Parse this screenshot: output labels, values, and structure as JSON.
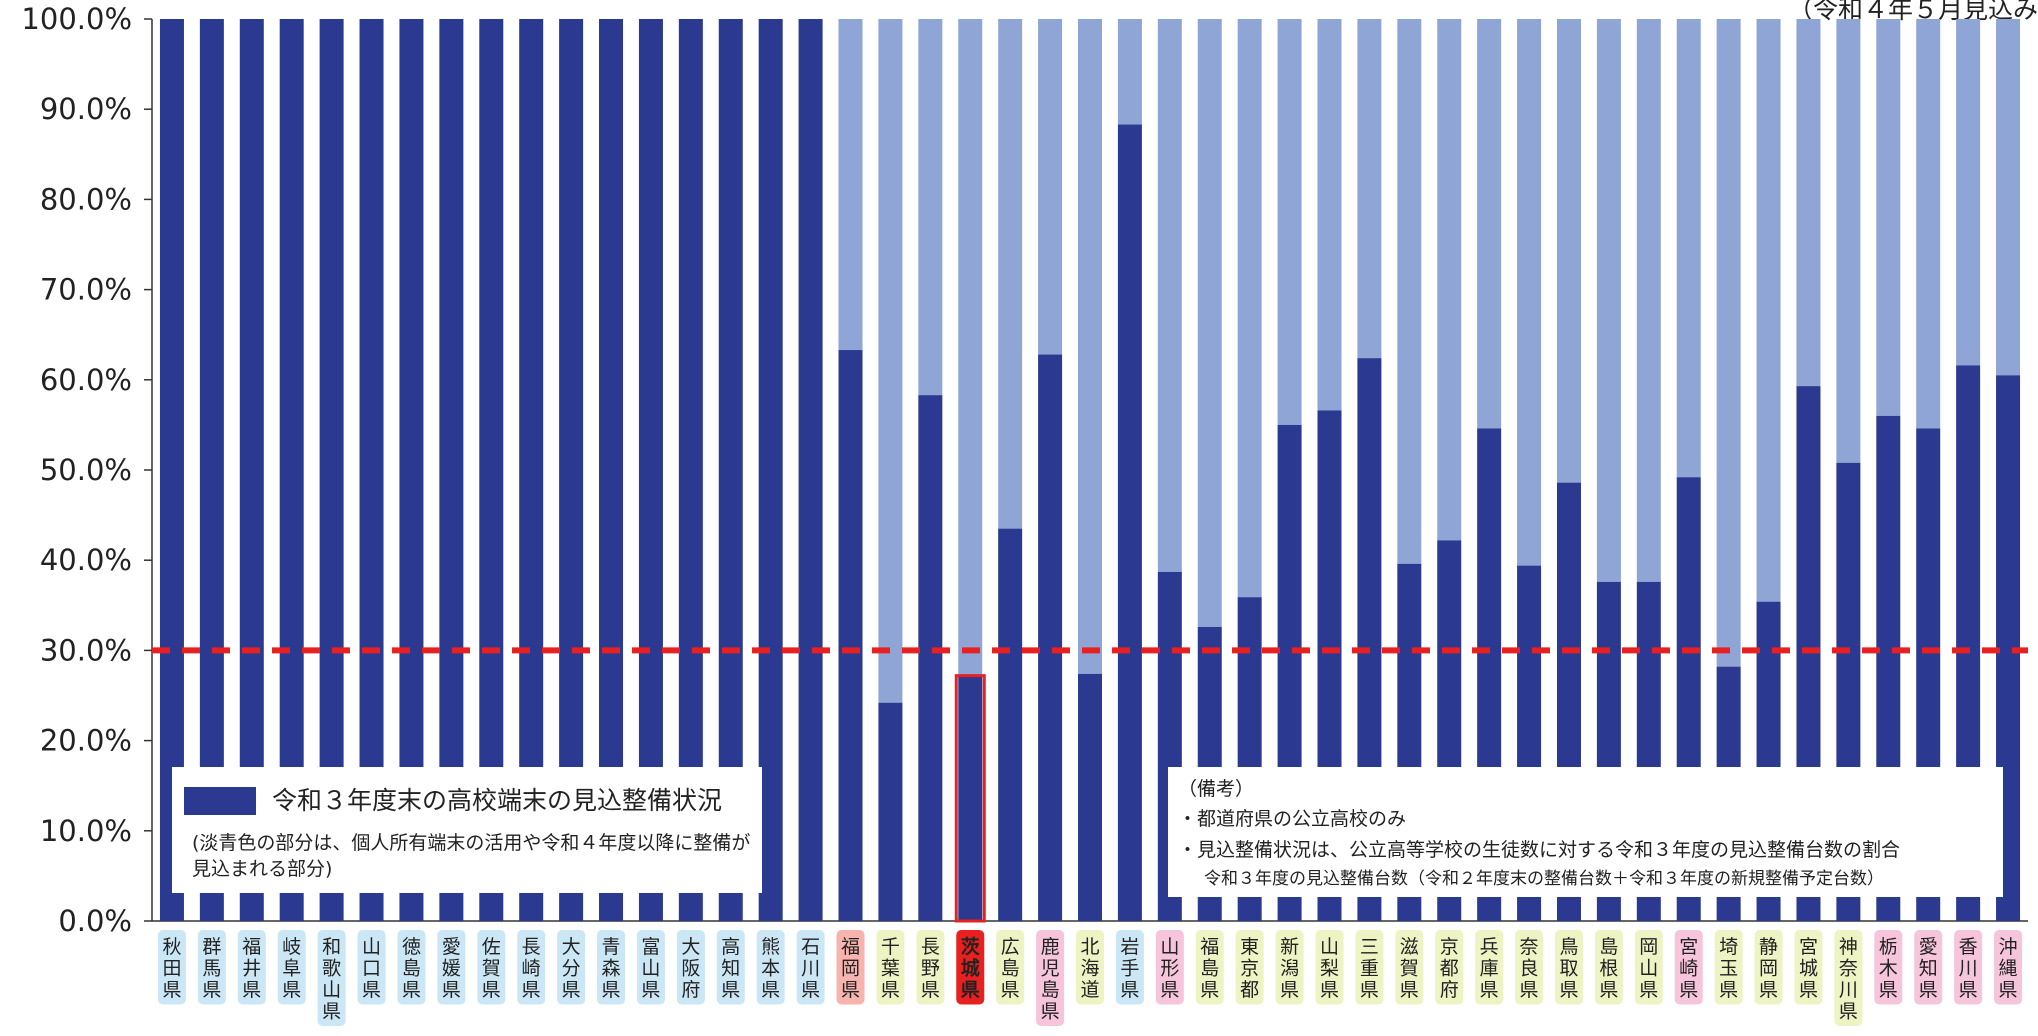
{
  "top_note": "（令和４年５月見込み",
  "legend": {
    "title": "令和３年度末の高校端末の見込整備状況",
    "note": "(淡青色の部分は、個人所有端末の活用や令和４年度以降に整備が見込まれる部分)"
  },
  "notes": {
    "heading": "（備考）",
    "line1": "・都道府県の公立高校のみ",
    "line2": "・見込整備状況は、公立高等学校の生徒数に対する令和３年度の見込整備台数の割合",
    "line3": "令和３年度の見込整備台数（令和２年度末の整備台数＋令和３年度の新規整備予定台数）"
  },
  "colors": {
    "dark_bar": "#2b3990",
    "light_bar": "#8ea5d6",
    "reference_line": "#e8201f",
    "highlight": "#e8201f",
    "label_blue": "#cbe7f6",
    "label_green": "#eef3c4",
    "label_pink": "#f6c5dc",
    "label_salmon": "#f7b3ae",
    "label_red": "#e8201f"
  },
  "chart_data": {
    "type": "bar",
    "stacked": true,
    "ylim": [
      0,
      100
    ],
    "y_ticks": [
      "0.0%",
      "10.0%",
      "20.0%",
      "30.0%",
      "40.0%",
      "50.0%",
      "60.0%",
      "70.0%",
      "80.0%",
      "90.0%",
      "100.0%"
    ],
    "reference_line": 30,
    "highlight_category": "茨城県",
    "categories": [
      "秋田県",
      "群馬県",
      "福井県",
      "岐阜県",
      "和歌山県",
      "山口県",
      "徳島県",
      "愛媛県",
      "佐賀県",
      "長崎県",
      "大分県",
      "青森県",
      "富山県",
      "大阪府",
      "高知県",
      "熊本県",
      "石川県",
      "福岡県",
      "千葉県",
      "長野県",
      "茨城県",
      "広島県",
      "鹿児島県",
      "北海道",
      "岩手県",
      "山形県",
      "福島県",
      "東京都",
      "新潟県",
      "山梨県",
      "三重県",
      "滋賀県",
      "京都府",
      "兵庫県",
      "奈良県",
      "鳥取県",
      "島根県",
      "岡山県",
      "宮崎県",
      "埼玉県",
      "静岡県",
      "宮城県",
      "神奈川県",
      "栃木県",
      "愛知県",
      "香川県",
      "沖縄県"
    ],
    "label_colors": [
      "blue",
      "blue",
      "blue",
      "blue",
      "blue",
      "blue",
      "blue",
      "blue",
      "blue",
      "blue",
      "blue",
      "blue",
      "blue",
      "blue",
      "blue",
      "blue",
      "blue",
      "salmon",
      "green",
      "green",
      "red",
      "green",
      "pink",
      "green",
      "blue",
      "pink",
      "green",
      "green",
      "green",
      "green",
      "green",
      "green",
      "green",
      "green",
      "green",
      "green",
      "green",
      "green",
      "pink",
      "green",
      "green",
      "green",
      "green",
      "pink",
      "pink",
      "pink",
      "pink"
    ],
    "series": [
      {
        "values": [
          100,
          100,
          100,
          100,
          100,
          100,
          100,
          100,
          100,
          100,
          100,
          100,
          100,
          100,
          100,
          100,
          100,
          63.3,
          24.2,
          58.3,
          27.2,
          43.5,
          62.8,
          27.4,
          88.3,
          38.7,
          32.6,
          35.9,
          55.0,
          56.6,
          62.4,
          39.6,
          42.2,
          54.6,
          39.4,
          48.6,
          37.6,
          37.6,
          49.2,
          28.2,
          35.4,
          59.3,
          50.8,
          56.0,
          54.6,
          61.6,
          60.5
        ]
      },
      {
        "values": [
          0,
          0,
          0,
          0,
          0,
          0,
          0,
          0,
          0,
          0,
          0,
          0,
          0,
          0,
          0,
          0,
          0,
          36.7,
          75.8,
          41.7,
          72.8,
          56.5,
          37.2,
          72.6,
          11.7,
          61.3,
          67.4,
          64.1,
          45.0,
          43.4,
          37.6,
          60.4,
          57.8,
          45.4,
          60.6,
          51.4,
          62.4,
          62.4,
          50.8,
          71.8,
          64.6,
          40.7,
          49.2,
          44.0,
          45.4,
          38.4,
          39.5
        ]
      }
    ]
  }
}
